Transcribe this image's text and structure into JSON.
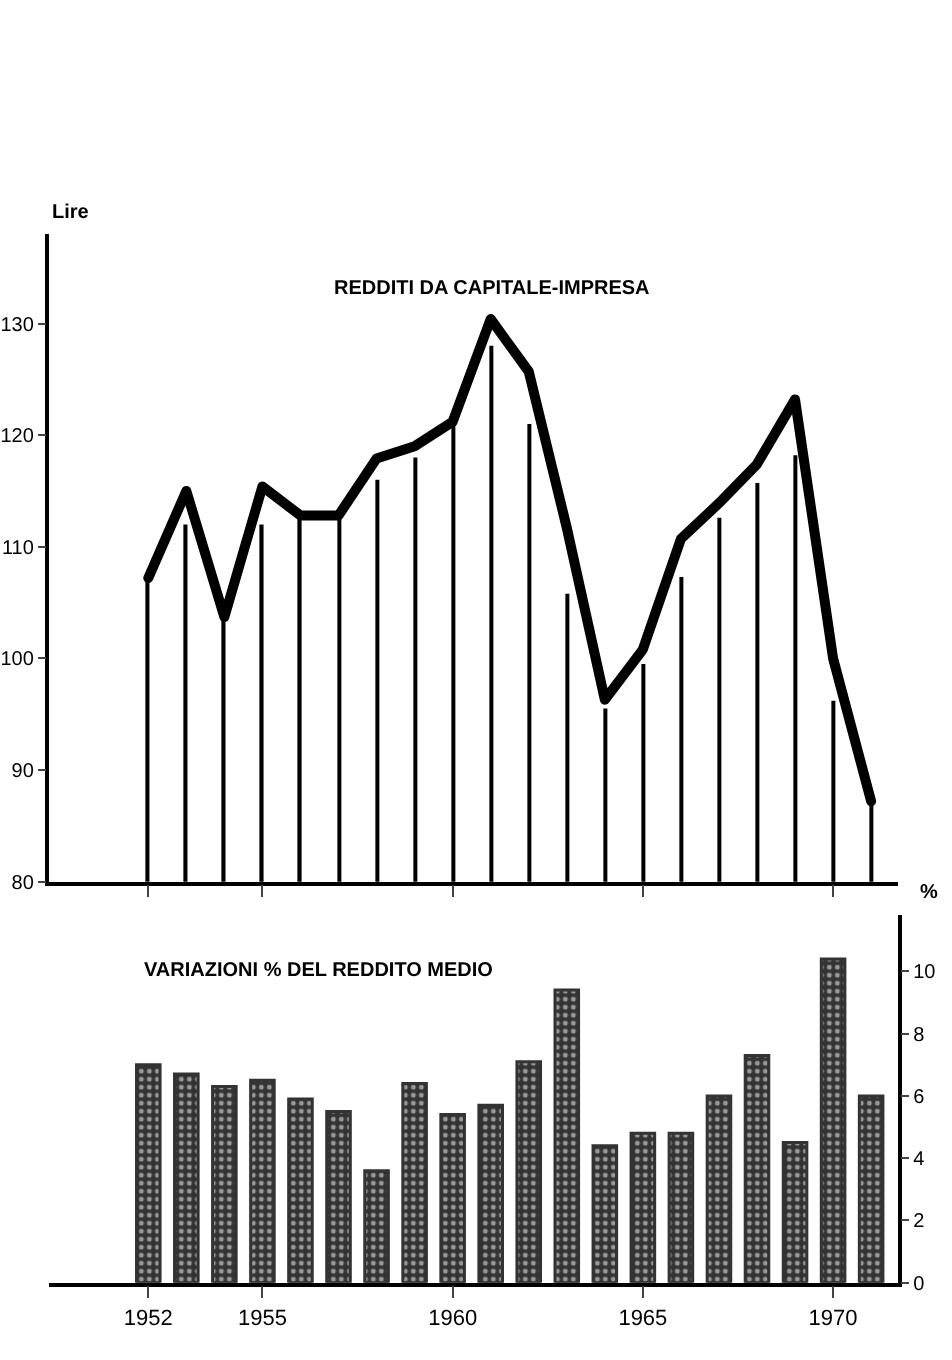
{
  "chart_data": [
    {
      "type": "line",
      "title": "REDDITI DA CAPITALE-IMPRESA",
      "ylabel": "Lire",
      "x": [
        1952,
        1953,
        1954,
        1955,
        1956,
        1957,
        1958,
        1959,
        1960,
        1961,
        1962,
        1963,
        1964,
        1965,
        1966,
        1967,
        1968,
        1969,
        1970,
        1971
      ],
      "series": [
        {
          "type": "line",
          "color": "#000000",
          "values": [
            107.2,
            115,
            103.7,
            115.4,
            112.8,
            112.8,
            117.9,
            119,
            121.2,
            130.4,
            125.7,
            111.7,
            96.3,
            100.8,
            110.7,
            113.9,
            117.4,
            123.2,
            100,
            87.2
          ]
        },
        {
          "type": "bar",
          "color": "#000000",
          "values": [
            107,
            112,
            103.5,
            112,
            112.5,
            112.5,
            116,
            118,
            121,
            128,
            121,
            105.8,
            95.5,
            99.5,
            107.3,
            112.6,
            115.7,
            118.2,
            96.2,
            86.9
          ]
        }
      ],
      "xlim": [
        1949.4,
        1971.7
      ],
      "ylim": [
        80,
        138
      ],
      "yticks": [
        80,
        90,
        100,
        110,
        120,
        130
      ],
      "xticks": [
        {
          "value": 1952,
          "label": null
        },
        {
          "value": 1955,
          "label": null
        },
        {
          "value": 1960,
          "label": null
        },
        {
          "value": 1965,
          "label": null
        },
        {
          "value": 1970,
          "label": null
        }
      ],
      "tick_labels": "y"
    },
    {
      "type": "bar",
      "title": "VARIAZIONI % DEL REDDITO MEDIO",
      "ylabel": "%",
      "x": [
        1952,
        1953,
        1954,
        1955,
        1956,
        1957,
        1958,
        1959,
        1960,
        1961,
        1962,
        1963,
        1964,
        1965,
        1966,
        1967,
        1968,
        1969,
        1970,
        1971
      ],
      "color": "#333333",
      "values": [
        7.0,
        6.7,
        6.3,
        6.5,
        5.9,
        5.5,
        3.6,
        6.4,
        5.4,
        5.7,
        7.1,
        9.4,
        4.4,
        4.8,
        4.8,
        6.0,
        7.3,
        4.5,
        10.4,
        6.0
      ],
      "xlim": [
        1949.4,
        1971.7
      ],
      "ylim": [
        0,
        11.8
      ],
      "yticks": [
        0,
        2,
        4,
        6,
        8,
        10
      ],
      "xticks": [
        1952,
        1955,
        1960,
        1965,
        1970
      ]
    }
  ]
}
